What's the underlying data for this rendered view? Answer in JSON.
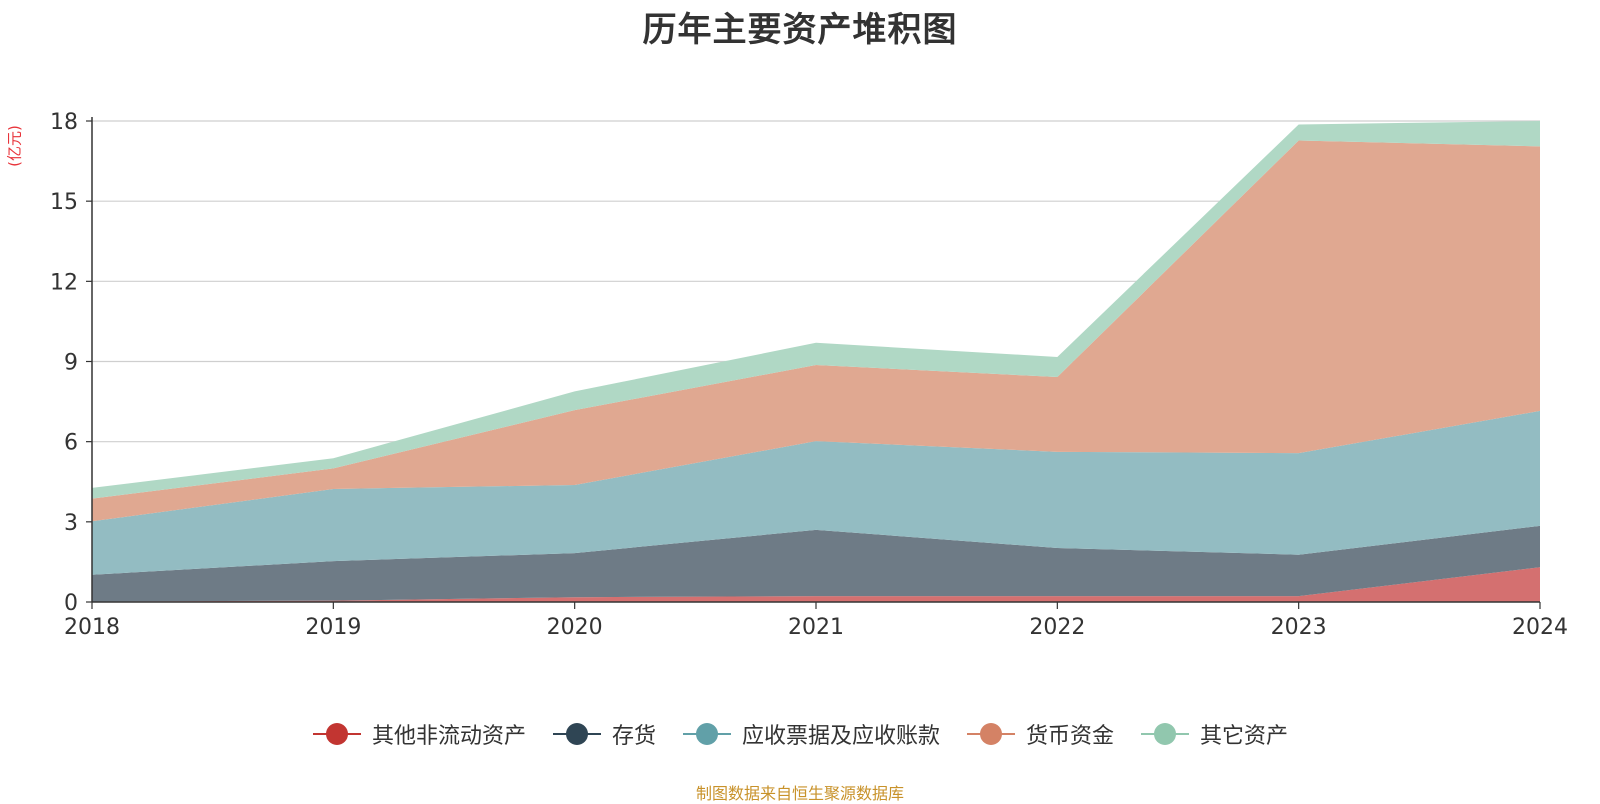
{
  "chart_data": {
    "type": "area",
    "stacked": true,
    "title": "历年主要资产堆积图",
    "ylabel": "(亿元)",
    "ylabel_color": "#e8333a",
    "x": [
      "2018",
      "2019",
      "2020",
      "2021",
      "2022",
      "2023",
      "2024"
    ],
    "ylim": [
      0,
      18
    ],
    "yticks": [
      0,
      3,
      6,
      9,
      12,
      15,
      18
    ],
    "grid": true,
    "legend_position": "bottom",
    "series": [
      {
        "name": "其他非流动资产",
        "color": "#c23531",
        "fill": "#d47070",
        "values": [
          0.02,
          0.05,
          0.18,
          0.22,
          0.22,
          0.22,
          1.3
        ]
      },
      {
        "name": "存货",
        "color": "#2f4554",
        "fill": "#6e7b86",
        "values": [
          1.0,
          1.48,
          1.65,
          2.48,
          1.8,
          1.55,
          1.55
        ]
      },
      {
        "name": "应收票据及应收账款",
        "color": "#61a0a8",
        "fill": "#93bcc2",
        "values": [
          2.0,
          2.7,
          2.55,
          3.32,
          3.6,
          3.8,
          4.3
        ]
      },
      {
        "name": "货币资金",
        "color": "#d48265",
        "fill": "#e0a891",
        "values": [
          0.85,
          0.77,
          2.8,
          2.85,
          2.8,
          11.7,
          9.9
        ]
      },
      {
        "name": "其它资产",
        "color": "#91c7ae",
        "fill": "#b0d8c5",
        "values": [
          0.4,
          0.38,
          0.7,
          0.83,
          0.75,
          0.6,
          0.95
        ]
      }
    ]
  },
  "source_text": "制图数据来自恒生聚源数据库",
  "source_color": "#c8922a"
}
